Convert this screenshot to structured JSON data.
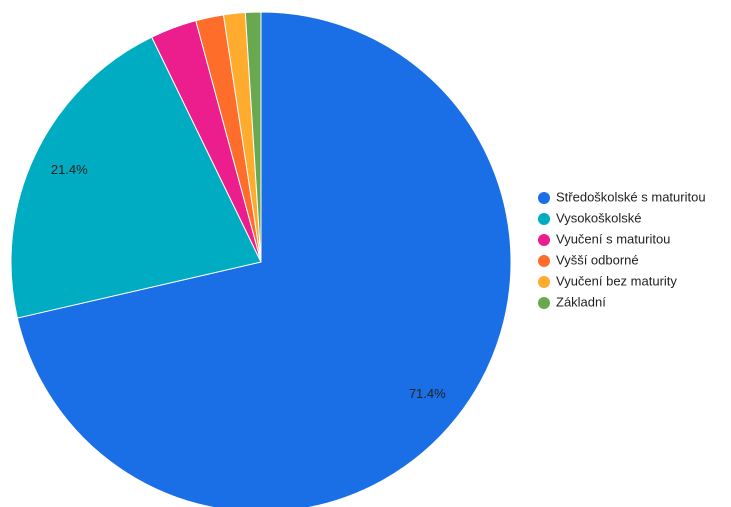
{
  "chart_data": {
    "type": "pie",
    "categories": [
      "Středoškolské s maturitou",
      "Vysokoškolské",
      "Vyučení s maturitou",
      "Vyšší odborné",
      "Vyučení bez maturity",
      "Základní"
    ],
    "values": [
      71.4,
      21.4,
      3.0,
      1.8,
      1.4,
      1.0
    ],
    "value_labels": [
      "71.4%",
      "21.4%",
      null,
      null,
      null,
      null
    ],
    "colors": [
      "#1a6ee6",
      "#00acc1",
      "#ec1d8c",
      "#ff6d2a",
      "#ffab2e",
      "#6aa84f"
    ],
    "legend": "right"
  }
}
